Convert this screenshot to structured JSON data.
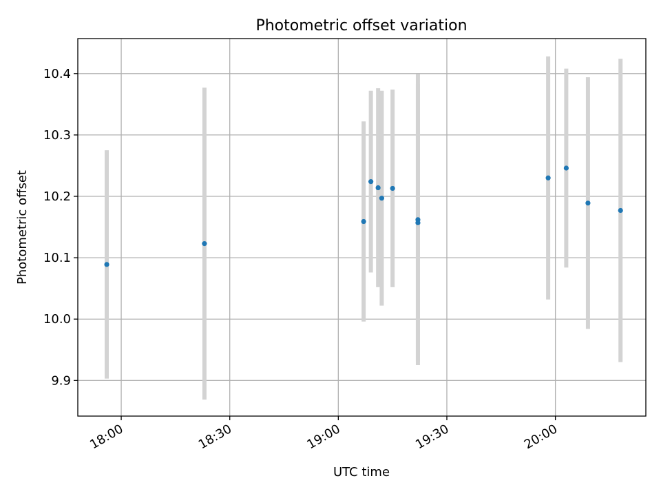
{
  "chart_data": {
    "type": "scatter",
    "title": "Photometric offset variation",
    "xlabel": "UTC time",
    "ylabel": "Photometric offset",
    "x_unit": "UTC time (HH:MM)",
    "xlim": [
      "17:48",
      "20:25"
    ],
    "ylim": [
      9.842,
      10.457
    ],
    "x_ticks": [
      "18:00",
      "18:30",
      "19:00",
      "19:30",
      "20:00"
    ],
    "y_ticks": [
      9.9,
      10.0,
      10.1,
      10.2,
      10.3,
      10.4
    ],
    "grid": true,
    "point_color": "#1f77b4",
    "errorbar_color": "#d3d3d3",
    "points": [
      {
        "x": "17:56",
        "y": 10.089,
        "err": 0.186
      },
      {
        "x": "18:23",
        "y": 10.123,
        "err": 0.254
      },
      {
        "x": "19:07",
        "y": 10.159,
        "err": 0.163
      },
      {
        "x": "19:09",
        "y": 10.224,
        "err": 0.148
      },
      {
        "x": "19:11",
        "y": 10.214,
        "err": 0.162
      },
      {
        "x": "19:12",
        "y": 10.197,
        "err": 0.175
      },
      {
        "x": "19:15",
        "y": 10.213,
        "err": 0.161
      },
      {
        "x": "19:22",
        "y": 10.162,
        "err": 0.237
      },
      {
        "x": "19:22",
        "y": 10.157,
        "err": 0.226
      },
      {
        "x": "19:58",
        "y": 10.23,
        "err": 0.198
      },
      {
        "x": "20:03",
        "y": 10.246,
        "err": 0.162
      },
      {
        "x": "20:09",
        "y": 10.189,
        "err": 0.205
      },
      {
        "x": "20:18",
        "y": 10.177,
        "err": 0.247
      }
    ]
  }
}
